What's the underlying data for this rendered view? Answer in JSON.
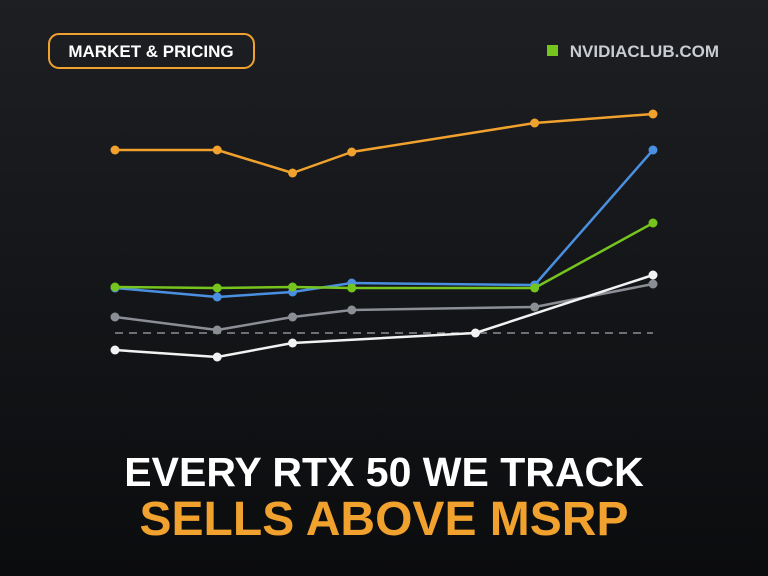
{
  "chart_data": {
    "type": "line",
    "badge": "MARKET & PRICING",
    "brand": "NVIDIACLUB.COM",
    "title": "EVERY RTX 50 WE TRACK",
    "subtitle": "SELLS ABOVE MSRP",
    "xlim": [
      0,
      100
    ],
    "ylim": [
      -20,
      120
    ],
    "baseline": 0,
    "series": [
      {
        "color": "#f0a12e",
        "x": [
          0,
          19,
          33,
          44,
          78,
          100
        ],
        "values": [
          91.5,
          91.5,
          80,
          90.5,
          105,
          109.5
        ]
      },
      {
        "color": "#4a8fe0",
        "x": [
          0,
          19,
          33,
          44,
          78,
          100
        ],
        "values": [
          22.5,
          18,
          20.5,
          25,
          24,
          91.5
        ]
      },
      {
        "color": "#76c41e",
        "x": [
          0,
          19,
          33,
          44,
          78,
          100
        ],
        "values": [
          23,
          22.5,
          23,
          22.5,
          22.5,
          55
        ]
      },
      {
        "color": "#8b8f95",
        "x": [
          0,
          19,
          33,
          44,
          78,
          100
        ],
        "values": [
          8,
          1.5,
          8,
          11.5,
          13,
          24.5
        ]
      },
      {
        "color": "#f2f2f2",
        "x": [
          0,
          19,
          33,
          67,
          100
        ],
        "values": [
          -8.5,
          -12,
          -5,
          0,
          29
        ]
      }
    ]
  }
}
